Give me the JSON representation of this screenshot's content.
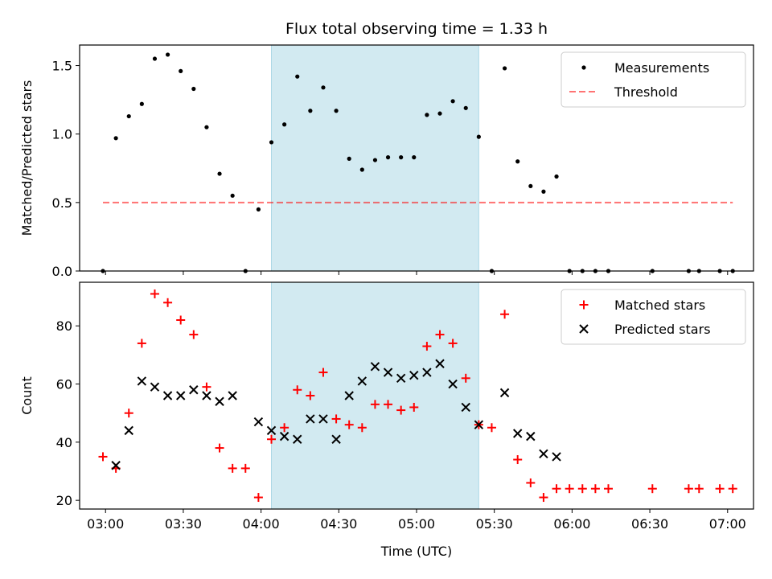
{
  "title": "Flux total observing time = 1.33 h",
  "colors": {
    "highlight": "#add8e6",
    "measurement": "#000000",
    "threshold": "#ff0000",
    "matched": "#ff0000",
    "predicted": "#000000"
  },
  "chart_data": [
    {
      "type": "scatter",
      "name": "top",
      "ylabel": "Matched/Predicted stars",
      "xlim": [
        "02:50",
        "07:10"
      ],
      "ylim": [
        0,
        1.65
      ],
      "yticks": [
        0.0,
        0.5,
        1.0,
        1.5
      ],
      "ytick_labels": [
        "0.0",
        "0.5",
        "1.0",
        "1.5"
      ],
      "highlight": {
        "start": "04:04",
        "end": "05:24"
      },
      "legend_position": "upper right",
      "series": [
        {
          "name": "Measurements",
          "marker": "dot",
          "x": [
            "02:59",
            "03:04",
            "03:09",
            "03:14",
            "03:19",
            "03:24",
            "03:29",
            "03:34",
            "03:39",
            "03:44",
            "03:49",
            "03:54",
            "03:59",
            "04:04",
            "04:09",
            "04:14",
            "04:19",
            "04:24",
            "04:29",
            "04:34",
            "04:39",
            "04:44",
            "04:49",
            "04:54",
            "04:59",
            "05:04",
            "05:09",
            "05:14",
            "05:19",
            "05:24",
            "05:29",
            "05:34",
            "05:39",
            "05:44",
            "05:49",
            "05:54",
            "05:59",
            "06:04",
            "06:09",
            "06:14",
            "06:31",
            "06:45",
            "06:49",
            "06:57",
            "07:02"
          ],
          "y": [
            0.0,
            0.97,
            1.13,
            1.22,
            1.55,
            1.58,
            1.46,
            1.33,
            1.05,
            0.71,
            0.55,
            0.0,
            0.45,
            0.94,
            1.07,
            1.42,
            1.17,
            1.34,
            1.17,
            0.82,
            0.74,
            0.81,
            0.83,
            0.83,
            0.83,
            1.14,
            1.15,
            1.24,
            1.19,
            0.98,
            0.0,
            1.48,
            0.8,
            0.62,
            0.58,
            0.69,
            0.0,
            0.0,
            0.0,
            0.0,
            0.0,
            0.0,
            0.0,
            0.0,
            0.0
          ]
        },
        {
          "name": "Threshold",
          "style": "dashed",
          "x": [
            "02:59",
            "07:02"
          ],
          "y": [
            0.5,
            0.5
          ]
        }
      ]
    },
    {
      "type": "scatter",
      "name": "bottom",
      "xlabel": "Time (UTC)",
      "ylabel": "Count",
      "xlim": [
        "02:50",
        "07:10"
      ],
      "ylim": [
        17,
        95
      ],
      "yticks": [
        20,
        40,
        60,
        80
      ],
      "xticks": [
        "03:00",
        "03:30",
        "04:00",
        "04:30",
        "05:00",
        "05:30",
        "06:00",
        "06:30",
        "07:00"
      ],
      "highlight": {
        "start": "04:04",
        "end": "05:24"
      },
      "legend_position": "upper right",
      "series": [
        {
          "name": "Matched stars",
          "marker": "plus",
          "x": [
            "02:59",
            "03:04",
            "03:09",
            "03:14",
            "03:19",
            "03:24",
            "03:29",
            "03:34",
            "03:39",
            "03:44",
            "03:49",
            "03:54",
            "03:59",
            "04:04",
            "04:09",
            "04:14",
            "04:19",
            "04:24",
            "04:29",
            "04:34",
            "04:39",
            "04:44",
            "04:49",
            "04:54",
            "04:59",
            "05:04",
            "05:09",
            "05:14",
            "05:19",
            "05:24",
            "05:29",
            "05:34",
            "05:39",
            "05:44",
            "05:49",
            "05:54",
            "05:59",
            "06:04",
            "06:09",
            "06:14",
            "06:31",
            "06:45",
            "06:49",
            "06:57",
            "07:02"
          ],
          "y": [
            35,
            31,
            50,
            74,
            91,
            88,
            82,
            77,
            59,
            38,
            31,
            31,
            21,
            41,
            45,
            58,
            56,
            64,
            48,
            46,
            45,
            53,
            53,
            51,
            52,
            73,
            77,
            74,
            62,
            46,
            45,
            84,
            34,
            26,
            21,
            24,
            24,
            24,
            24,
            24,
            24,
            24,
            24,
            24,
            24
          ]
        },
        {
          "name": "Predicted stars",
          "marker": "x",
          "x": [
            "03:04",
            "03:09",
            "03:14",
            "03:19",
            "03:24",
            "03:29",
            "03:34",
            "03:39",
            "03:44",
            "03:49",
            "03:59",
            "04:04",
            "04:09",
            "04:14",
            "04:19",
            "04:24",
            "04:29",
            "04:34",
            "04:39",
            "04:44",
            "04:49",
            "04:54",
            "04:59",
            "05:04",
            "05:09",
            "05:14",
            "05:19",
            "05:24",
            "05:34",
            "05:39",
            "05:44",
            "05:49",
            "05:54"
          ],
          "y": [
            32,
            44,
            61,
            59,
            56,
            56,
            58,
            56,
            54,
            56,
            47,
            44,
            42,
            41,
            48,
            48,
            41,
            56,
            61,
            66,
            64,
            62,
            63,
            64,
            67,
            60,
            52,
            46,
            57,
            43,
            42,
            36,
            35
          ]
        }
      ]
    }
  ]
}
